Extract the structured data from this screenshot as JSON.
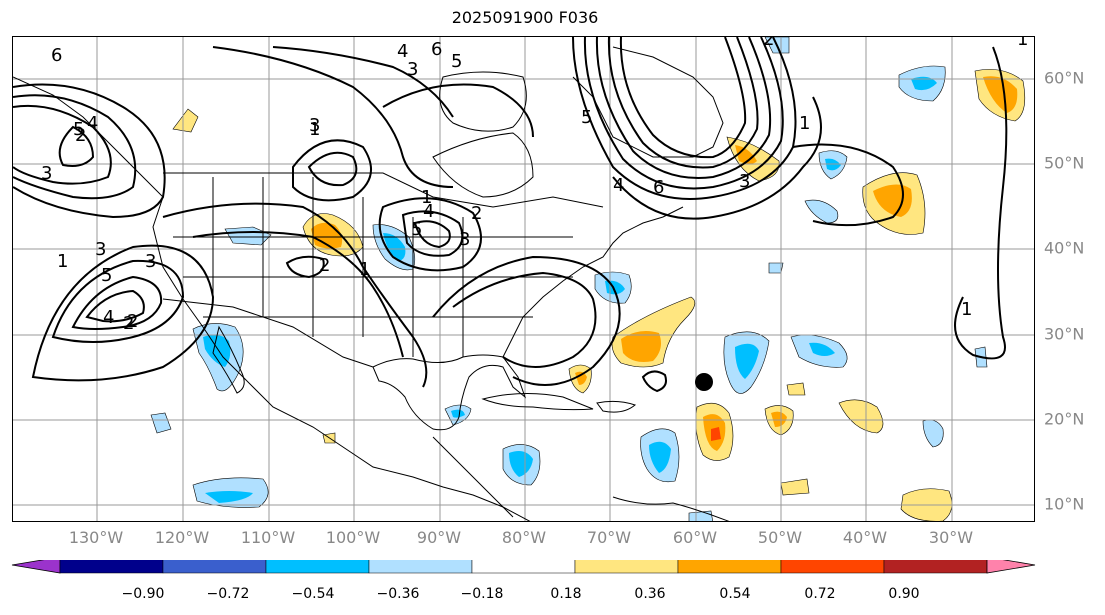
{
  "title": "2025091900 F036",
  "longitude_labels": [
    "130°W",
    "120°W",
    "110°W",
    "100°W",
    "90°W",
    "80°W",
    "70°W",
    "60°W",
    "50°W",
    "40°W",
    "30°W"
  ],
  "latitude_labels": [
    "60°N",
    "50°N",
    "40°N",
    "30°N",
    "20°N",
    "10°N"
  ],
  "colorbar": {
    "labels": [
      "−0.90",
      "−0.72",
      "−0.54",
      "−0.36",
      "−0.18",
      "0.18",
      "0.36",
      "0.54",
      "0.72",
      "0.90"
    ],
    "colors": [
      "#9b33cc",
      "#00008b",
      "#3a5fcd",
      "#00bfff",
      "#b0e0ff",
      "#ffffff",
      "#ffe680",
      "#ffa500",
      "#ff4500",
      "#b22222",
      "#ff82ab"
    ]
  },
  "contour_labels": [
    "6",
    "5",
    "4",
    "3",
    "2",
    "1",
    "6",
    "5",
    "4",
    "3",
    "3",
    "2",
    "1",
    "3",
    "5",
    "4",
    "3",
    "2",
    "1",
    "5",
    "4",
    "3",
    "2",
    "1",
    "6",
    "5",
    "4",
    "3",
    "2",
    "1",
    "2",
    "1",
    "1"
  ],
  "marker": {
    "name": "storm-center",
    "lon": -60.5,
    "lat": 24.5
  },
  "colors": {
    "contour": "#000000",
    "grid": "#999999",
    "coast": "#000000"
  }
}
